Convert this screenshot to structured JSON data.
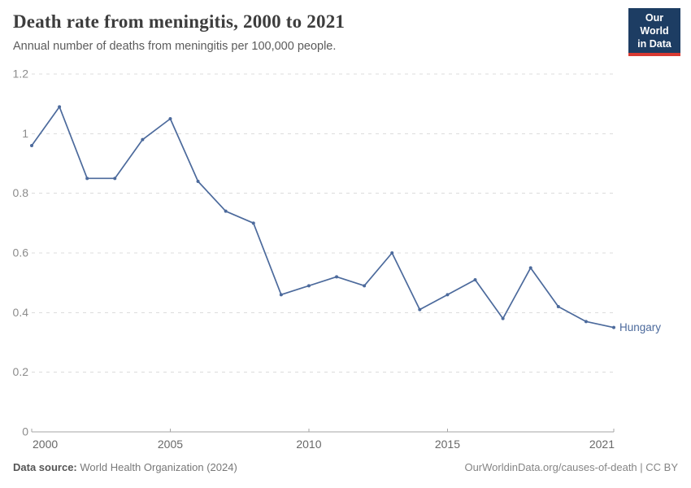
{
  "header": {
    "title": "Death rate from meningitis, 2000 to 2021",
    "subtitle": "Annual number of deaths from meningitis per 100,000 people.",
    "logo_line1": "Our World",
    "logo_line2": "in Data"
  },
  "chart_data": {
    "type": "line",
    "title": "Death rate from meningitis, 2000 to 2021",
    "xlabel": "",
    "ylabel": "",
    "x": [
      2000,
      2001,
      2002,
      2003,
      2004,
      2005,
      2006,
      2007,
      2008,
      2009,
      2010,
      2011,
      2012,
      2013,
      2014,
      2015,
      2016,
      2017,
      2018,
      2019,
      2020,
      2021
    ],
    "series": [
      {
        "name": "Hungary",
        "color": "#4C6A9C",
        "values": [
          0.96,
          1.09,
          0.85,
          0.85,
          0.98,
          1.05,
          0.84,
          0.74,
          0.7,
          0.46,
          0.49,
          0.52,
          0.49,
          0.6,
          0.41,
          0.46,
          0.51,
          0.38,
          0.55,
          0.42,
          0.37,
          0.35
        ]
      }
    ],
    "xlim": [
      2000,
      2021
    ],
    "ylim": [
      0,
      1.2
    ],
    "x_ticks": [
      2000,
      2005,
      2010,
      2015,
      2021
    ],
    "y_ticks": [
      0,
      0.2,
      0.4,
      0.6,
      0.8,
      1,
      1.2
    ],
    "grid": "horizontal-dashed",
    "legend": "end-of-line-label"
  },
  "footer": {
    "datasource_label": "Data source:",
    "datasource_value": "World Health Organization (2024)",
    "credit": "OurWorldinData.org/causes-of-death | CC BY"
  },
  "colors": {
    "line": "#4C6A9C",
    "grid": "#dcdcdc",
    "axis": "#a6a6a6",
    "y_tick_label": "#8c8c8c",
    "x_tick_label": "#686868",
    "logo_bg": "#1d3d63",
    "logo_red": "#d93a32"
  }
}
